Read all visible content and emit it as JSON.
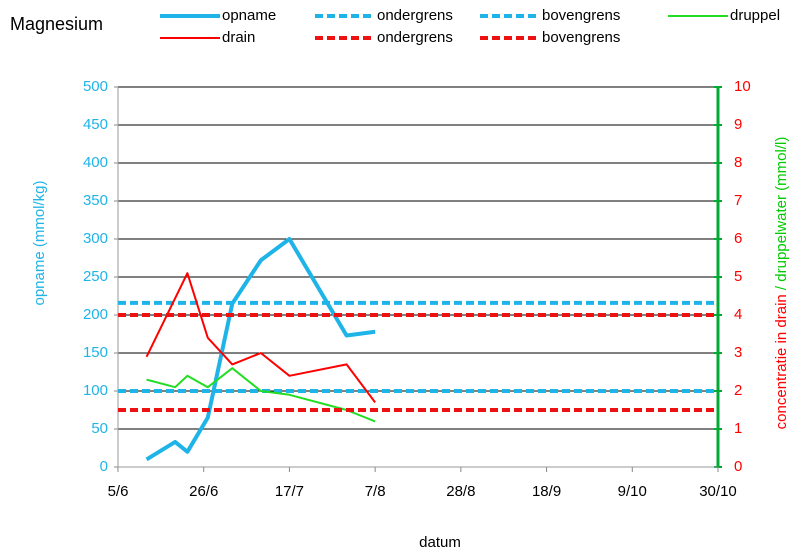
{
  "chart_data": {
    "type": "line",
    "title": "Magnesium",
    "xlabel": "datum",
    "ylabel": "opname (mmol/kg)",
    "y2label_parts": [
      {
        "text": "concentratie in drain",
        "color": "#ff0000"
      },
      {
        "text": "/ druppelwater (mmol/l)",
        "color": "#00cc00"
      }
    ],
    "xlim": [
      0,
      147
    ],
    "xticks": [
      {
        "value": 0,
        "label": "5/6"
      },
      {
        "value": 21,
        "label": "26/6"
      },
      {
        "value": 42,
        "label": "17/7"
      },
      {
        "value": 63,
        "label": "7/8"
      },
      {
        "value": 84,
        "label": "28/8"
      },
      {
        "value": 105,
        "label": "18/9"
      },
      {
        "value": 126,
        "label": "9/10"
      },
      {
        "value": 147,
        "label": "30/10"
      }
    ],
    "ylim": [
      0,
      500
    ],
    "yticks": [
      0,
      50,
      100,
      150,
      200,
      250,
      300,
      350,
      400,
      450,
      500
    ],
    "y2lim": [
      0,
      10
    ],
    "y2ticks": [
      0,
      1,
      2,
      3,
      4,
      5,
      6,
      7,
      8,
      9,
      10
    ],
    "grid": true,
    "series": [
      {
        "name": "opname",
        "color": "#1fb4e8",
        "width": 4,
        "dash": false,
        "axis": "y",
        "x": [
          7,
          14,
          17,
          22,
          28,
          35,
          42,
          56,
          63
        ],
        "values": [
          10,
          33,
          20,
          65,
          215,
          272,
          300,
          173,
          178
        ]
      },
      {
        "name": "ondergrens",
        "color": "#1fb4e8",
        "width": 4,
        "dash": true,
        "axis": "y",
        "x": [
          0,
          147
        ],
        "values": [
          100,
          100
        ]
      },
      {
        "name": "bovengrens",
        "color": "#1fb4e8",
        "width": 4,
        "dash": true,
        "axis": "y",
        "x": [
          0,
          147
        ],
        "values": [
          216,
          216
        ]
      },
      {
        "name": "druppel",
        "color": "#22dd22",
        "width": 2,
        "dash": false,
        "axis": "y2",
        "x": [
          7,
          14,
          17,
          22,
          28,
          35,
          42,
          56,
          63
        ],
        "values": [
          2.3,
          2.1,
          2.4,
          2.1,
          2.6,
          2.0,
          1.9,
          1.5,
          1.2
        ]
      },
      {
        "name": "drain",
        "color": "#ff0000",
        "width": 2,
        "dash": false,
        "axis": "y2",
        "x": [
          7,
          17,
          22,
          28,
          35,
          42,
          56,
          63
        ],
        "values": [
          2.9,
          5.1,
          3.4,
          2.7,
          3.0,
          2.4,
          2.7,
          1.7
        ]
      },
      {
        "name": "ondergrens",
        "color": "#ee1111",
        "width": 4,
        "dash": true,
        "axis": "y2",
        "x": [
          0,
          147
        ],
        "values": [
          1.5,
          1.5
        ]
      },
      {
        "name": "bovengrens",
        "color": "#ee1111",
        "width": 4,
        "dash": true,
        "axis": "y2",
        "x": [
          0,
          147
        ],
        "values": [
          4.0,
          4.0
        ]
      }
    ]
  }
}
